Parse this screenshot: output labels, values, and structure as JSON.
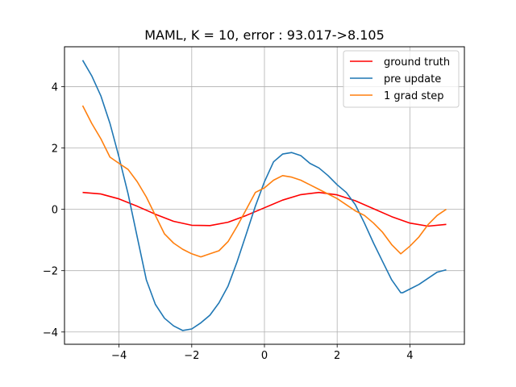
{
  "chart_data": {
    "type": "line",
    "title": "MAML, K = 10, error : 93.017->8.105",
    "xlabel": "",
    "ylabel": "",
    "xlim": [
      -5.5,
      5.5
    ],
    "ylim": [
      -4.4,
      5.3
    ],
    "xticks": [
      -4,
      -2,
      0,
      2,
      4
    ],
    "yticks": [
      -4,
      -2,
      0,
      2,
      4
    ],
    "grid": true,
    "legend_position": "top-right",
    "series": [
      {
        "name": "ground truth",
        "color": "#ff0000",
        "x": [
          -5.0,
          -4.5,
          -4.0,
          -3.5,
          -3.0,
          -2.5,
          -2.0,
          -1.5,
          -1.0,
          -0.5,
          0.0,
          0.5,
          1.0,
          1.5,
          2.0,
          2.5,
          3.0,
          3.5,
          4.0,
          4.5,
          5.0
        ],
        "y": [
          0.55,
          0.5,
          0.34,
          0.1,
          -0.16,
          -0.39,
          -0.52,
          -0.53,
          -0.42,
          -0.2,
          0.05,
          0.3,
          0.48,
          0.55,
          0.47,
          0.28,
          0.02,
          -0.24,
          -0.45,
          -0.55,
          -0.49
        ]
      },
      {
        "name": "pre update",
        "color": "#1f77b4",
        "x": [
          -5.0,
          -4.75,
          -4.5,
          -4.25,
          -4.0,
          -3.75,
          -3.5,
          -3.25,
          -3.0,
          -2.75,
          -2.5,
          -2.25,
          -2.0,
          -1.75,
          -1.5,
          -1.25,
          -1.0,
          -0.75,
          -0.5,
          -0.25,
          0.0,
          0.25,
          0.5,
          0.75,
          1.0,
          1.25,
          1.5,
          1.75,
          2.0,
          2.25,
          2.5,
          2.75,
          3.0,
          3.25,
          3.5,
          3.75,
          3.8,
          4.0,
          4.25,
          4.5,
          4.75,
          5.0
        ],
        "y": [
          4.86,
          4.35,
          3.7,
          2.8,
          1.7,
          0.5,
          -0.9,
          -2.3,
          -3.1,
          -3.55,
          -3.8,
          -3.95,
          -3.9,
          -3.7,
          -3.45,
          -3.05,
          -2.5,
          -1.7,
          -0.8,
          0.1,
          0.9,
          1.55,
          1.8,
          1.85,
          1.75,
          1.5,
          1.35,
          1.1,
          0.8,
          0.55,
          0.15,
          -0.45,
          -1.1,
          -1.7,
          -2.3,
          -2.72,
          -2.72,
          -2.6,
          -2.45,
          -2.25,
          -2.05,
          -1.97
        ]
      },
      {
        "name": "1 grad step",
        "color": "#ff7f0e",
        "x": [
          -5.0,
          -4.75,
          -4.5,
          -4.25,
          -4.0,
          -3.75,
          -3.5,
          -3.25,
          -3.0,
          -2.75,
          -2.5,
          -2.25,
          -2.0,
          -1.75,
          -1.5,
          -1.25,
          -1.0,
          -0.75,
          -0.5,
          -0.25,
          0.0,
          0.25,
          0.5,
          0.75,
          1.0,
          1.25,
          1.5,
          1.75,
          2.0,
          2.25,
          2.5,
          2.75,
          3.0,
          3.25,
          3.5,
          3.75,
          4.0,
          4.25,
          4.5,
          4.75,
          5.0
        ],
        "y": [
          3.38,
          2.8,
          2.3,
          1.7,
          1.5,
          1.3,
          0.9,
          0.4,
          -0.2,
          -0.8,
          -1.1,
          -1.3,
          -1.45,
          -1.55,
          -1.45,
          -1.35,
          -1.05,
          -0.55,
          0.0,
          0.55,
          0.7,
          0.95,
          1.1,
          1.05,
          0.95,
          0.8,
          0.65,
          0.5,
          0.35,
          0.15,
          -0.05,
          -0.2,
          -0.45,
          -0.75,
          -1.15,
          -1.45,
          -1.2,
          -0.9,
          -0.5,
          -0.2,
          0.0
        ]
      }
    ]
  }
}
